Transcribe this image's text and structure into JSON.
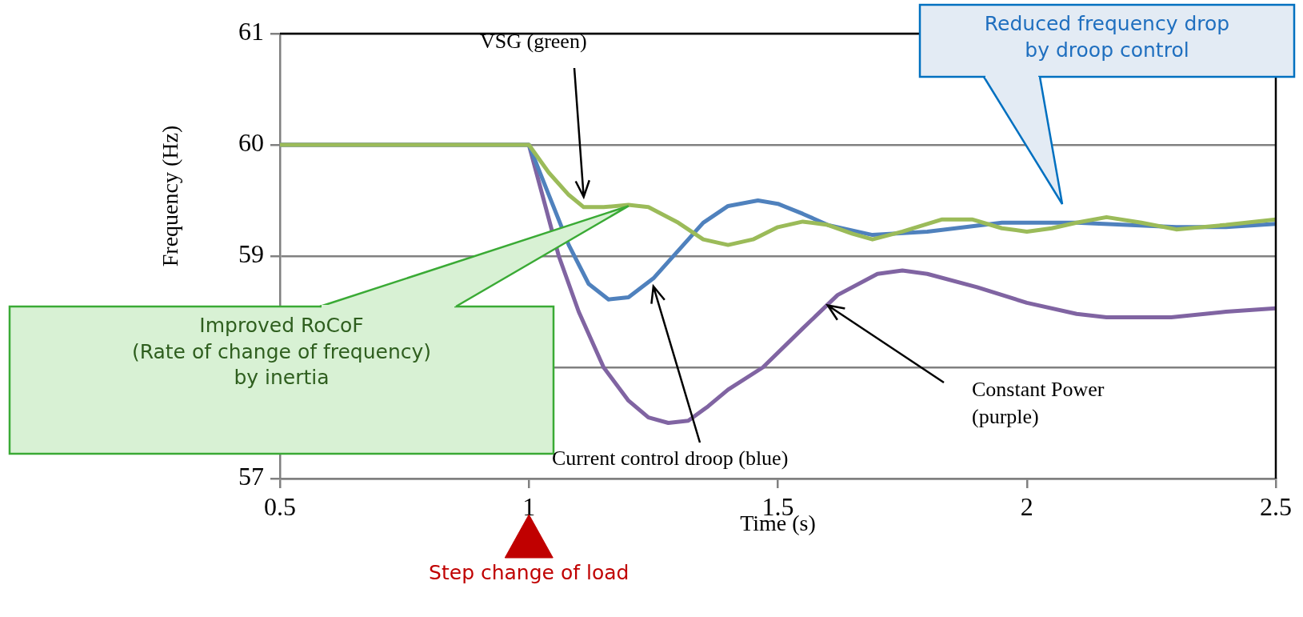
{
  "chart_data": {
    "type": "line",
    "xlabel": "Time (s)",
    "ylabel": "Frequency (Hz)",
    "xlim": [
      0.5,
      2.5
    ],
    "xticks": [
      0.5,
      1,
      1.5,
      2,
      2.5
    ],
    "ylim": [
      57,
      61
    ],
    "yticks": [
      57,
      {
        "value": 58,
        "label": null
      },
      59,
      60,
      61
    ],
    "grid": "y",
    "legend": false,
    "marker": "none",
    "line_style": "solid",
    "series": [
      {
        "name": "VSG (green)",
        "color": "#9bbb59",
        "x": [
          0.5,
          1.0,
          1.04,
          1.08,
          1.11,
          1.15,
          1.2,
          1.24,
          1.3,
          1.35,
          1.4,
          1.45,
          1.5,
          1.55,
          1.6,
          1.65,
          1.69,
          1.75,
          1.83,
          1.89,
          1.95,
          2.0,
          2.05,
          2.1,
          2.16,
          2.23,
          2.3,
          2.4,
          2.5
        ],
        "values": [
          60,
          60,
          59.75,
          59.55,
          59.44,
          59.44,
          59.46,
          59.44,
          59.3,
          59.15,
          59.1,
          59.15,
          59.26,
          59.31,
          59.28,
          59.2,
          59.15,
          59.22,
          59.33,
          59.33,
          59.25,
          59.22,
          59.25,
          59.3,
          59.35,
          59.3,
          59.24,
          59.28,
          59.33
        ]
      },
      {
        "name": "Current control droop (blue)",
        "color": "#4f81bd",
        "x": [
          0.5,
          1.0,
          1.04,
          1.08,
          1.12,
          1.16,
          1.2,
          1.25,
          1.3,
          1.35,
          1.4,
          1.46,
          1.5,
          1.55,
          1.6,
          1.69,
          1.8,
          1.95,
          2.1,
          2.2,
          2.3,
          2.4,
          2.5
        ],
        "values": [
          60,
          60,
          59.55,
          59.1,
          58.75,
          58.61,
          58.63,
          58.8,
          59.05,
          59.3,
          59.45,
          59.5,
          59.47,
          59.38,
          59.28,
          59.19,
          59.22,
          59.3,
          59.3,
          59.28,
          59.26,
          59.26,
          59.29
        ]
      },
      {
        "name": "Constant Power (purple)",
        "color": "#8064a2",
        "x": [
          0.5,
          1.0,
          1.03,
          1.06,
          1.1,
          1.15,
          1.2,
          1.24,
          1.28,
          1.32,
          1.36,
          1.4,
          1.47,
          1.55,
          1.62,
          1.7,
          1.75,
          1.8,
          1.9,
          2.0,
          2.1,
          2.16,
          2.29,
          2.4,
          2.5
        ],
        "values": [
          60,
          60,
          59.5,
          59.0,
          58.5,
          58.0,
          57.7,
          57.55,
          57.5,
          57.52,
          57.65,
          57.8,
          58.0,
          58.35,
          58.65,
          58.84,
          58.87,
          58.84,
          58.72,
          58.58,
          58.48,
          58.45,
          58.45,
          58.5,
          58.53
        ]
      }
    ],
    "annotations": [
      {
        "text": "Improved RoCoF\n(Rate of change of frequency)\nby inertia",
        "x": 1.2,
        "y": 59.45
      },
      "Reduced frequency drop\nby droop control",
      "Step change of load"
    ]
  }
}
